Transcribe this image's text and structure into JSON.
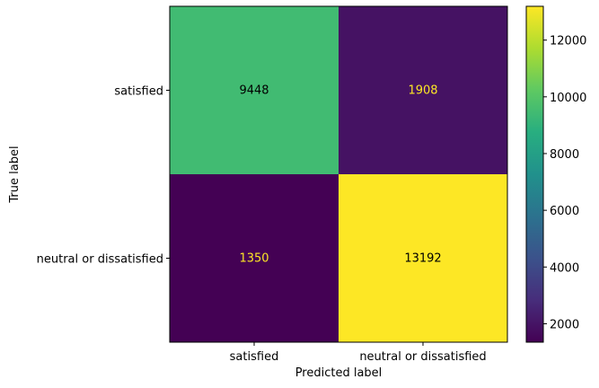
{
  "chart_data": {
    "type": "heatmap",
    "title": "",
    "xlabel": "Predicted label",
    "ylabel": "True label",
    "x_categories": [
      "satisfied",
      "neutral or dissatisfied"
    ],
    "y_categories": [
      "satisfied",
      "neutral or dissatisfied"
    ],
    "values": [
      [
        9448,
        1908
      ],
      [
        1350,
        13192
      ]
    ],
    "colormap": "viridis",
    "value_range": [
      1350,
      13192
    ],
    "colorbar_ticks": [
      2000,
      4000,
      6000,
      8000,
      10000,
      12000
    ],
    "colorbar_tick_labels": [
      "2000",
      "4000",
      "6000",
      "8000",
      "10000",
      "12000"
    ],
    "annotation_colors": {
      "on_dark": "#fde725",
      "on_light": "#000000"
    }
  }
}
